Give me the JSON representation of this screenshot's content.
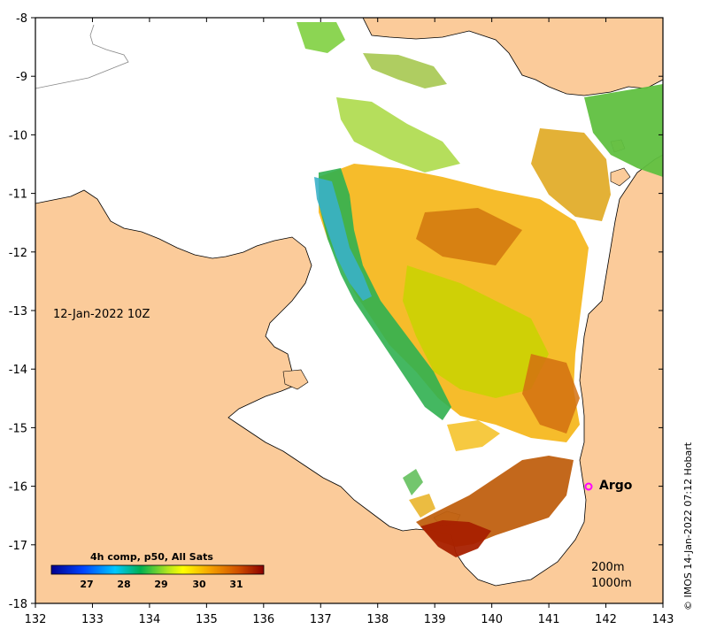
{
  "map": {
    "x_ticks": [
      "132",
      "133",
      "134",
      "135",
      "136",
      "137",
      "138",
      "139",
      "140",
      "141",
      "142",
      "143"
    ],
    "y_ticks": [
      "-8",
      "-9",
      "-10",
      "-11",
      "-12",
      "-13",
      "-14",
      "-15",
      "-16",
      "-17",
      "-18"
    ],
    "timestamp": "12-Jan-2022 10Z",
    "argo_label": "Argo",
    "depth_contours": [
      "200m",
      "1000m"
    ],
    "credit": "© IMOS 14-Jan-2022 07:12 Hobart",
    "colorbar": {
      "title": "4h comp, p50, All Sats",
      "ticks": [
        "27",
        "28",
        "29",
        "30",
        "31"
      ],
      "range": [
        26,
        32
      ]
    },
    "argo_position": {
      "lon": 141.7,
      "lat": -16.0
    },
    "colors": {
      "land": "#fbcb9a",
      "ocean": "#ffffff",
      "coast": "#000000",
      "argo_marker": "#ff00ff"
    }
  }
}
